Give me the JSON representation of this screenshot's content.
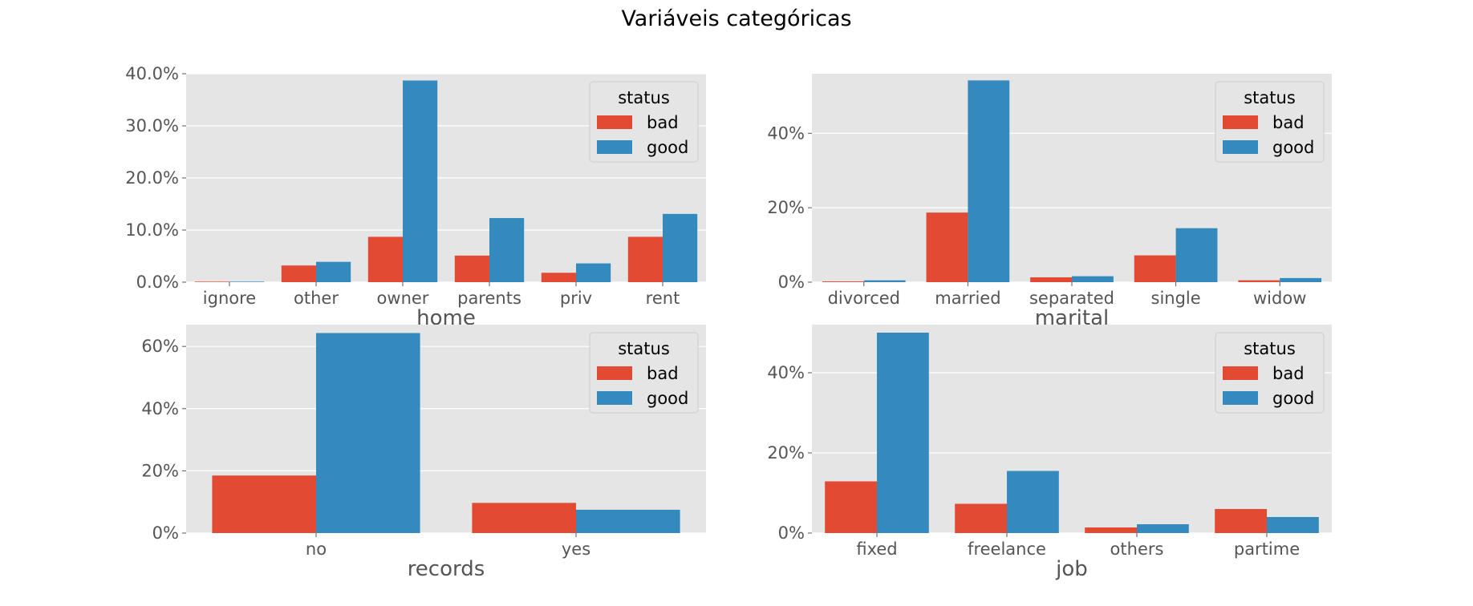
{
  "figure": {
    "title": "Variáveis categóricas"
  },
  "colors": {
    "bad": "#E24A33",
    "good": "#348ABD",
    "panel_bg": "#E5E5E5",
    "grid": "#FFFFFF"
  },
  "chart_data": [
    {
      "type": "bar",
      "xlabel": "home",
      "ylabel": "",
      "categories": [
        "ignore",
        "other",
        "owner",
        "parents",
        "priv",
        "rent"
      ],
      "series": [
        {
          "name": "bad",
          "values": [
            0.1,
            3.2,
            8.7,
            5.1,
            1.8,
            8.7
          ]
        },
        {
          "name": "good",
          "values": [
            0.1,
            3.9,
            38.7,
            12.3,
            3.6,
            13.1
          ]
        }
      ],
      "ylim": [
        0,
        40
      ],
      "yticks": [
        0,
        10,
        20,
        30,
        40
      ],
      "ytick_labels": [
        "0.0%",
        "10.0%",
        "20.0%",
        "30.0%",
        "40.0%"
      ],
      "legend": {
        "title": "status",
        "entries": [
          "bad",
          "good"
        ],
        "placement": "top-right"
      },
      "grid": true
    },
    {
      "type": "bar",
      "xlabel": "marital",
      "ylabel": "",
      "categories": [
        "divorced",
        "married",
        "separated",
        "single",
        "widow"
      ],
      "series": [
        {
          "name": "bad",
          "values": [
            0.2,
            18.7,
            1.3,
            7.2,
            0.5
          ]
        },
        {
          "name": "good",
          "values": [
            0.5,
            54.2,
            1.6,
            14.5,
            1.1
          ]
        }
      ],
      "ylim": [
        0,
        56
      ],
      "yticks": [
        0,
        20,
        40
      ],
      "ytick_labels": [
        "0%",
        "20%",
        "40%"
      ],
      "legend": {
        "title": "status",
        "entries": [
          "bad",
          "good"
        ],
        "placement": "top-right"
      },
      "grid": true
    },
    {
      "type": "bar",
      "xlabel": "records",
      "ylabel": "",
      "categories": [
        "no",
        "yes"
      ],
      "series": [
        {
          "name": "bad",
          "values": [
            18.5,
            9.7
          ]
        },
        {
          "name": "good",
          "values": [
            64.3,
            7.5
          ]
        }
      ],
      "ylim": [
        0,
        67
      ],
      "yticks": [
        0,
        20,
        40,
        60
      ],
      "ytick_labels": [
        "0%",
        "20%",
        "40%",
        "60%"
      ],
      "legend": {
        "title": "status",
        "entries": [
          "bad",
          "good"
        ],
        "placement": "top-right"
      },
      "grid": true
    },
    {
      "type": "bar",
      "xlabel": "job",
      "ylabel": "",
      "categories": [
        "fixed",
        "freelance",
        "others",
        "partime"
      ],
      "series": [
        {
          "name": "bad",
          "values": [
            12.9,
            7.3,
            1.4,
            6.0
          ]
        },
        {
          "name": "good",
          "values": [
            50.0,
            15.5,
            2.2,
            4.0
          ]
        }
      ],
      "ylim": [
        0,
        52
      ],
      "yticks": [
        0,
        20,
        40
      ],
      "ytick_labels": [
        "0%",
        "20%",
        "40%"
      ],
      "legend": {
        "title": "status",
        "entries": [
          "bad",
          "good"
        ],
        "placement": "top-right"
      },
      "grid": true
    }
  ]
}
